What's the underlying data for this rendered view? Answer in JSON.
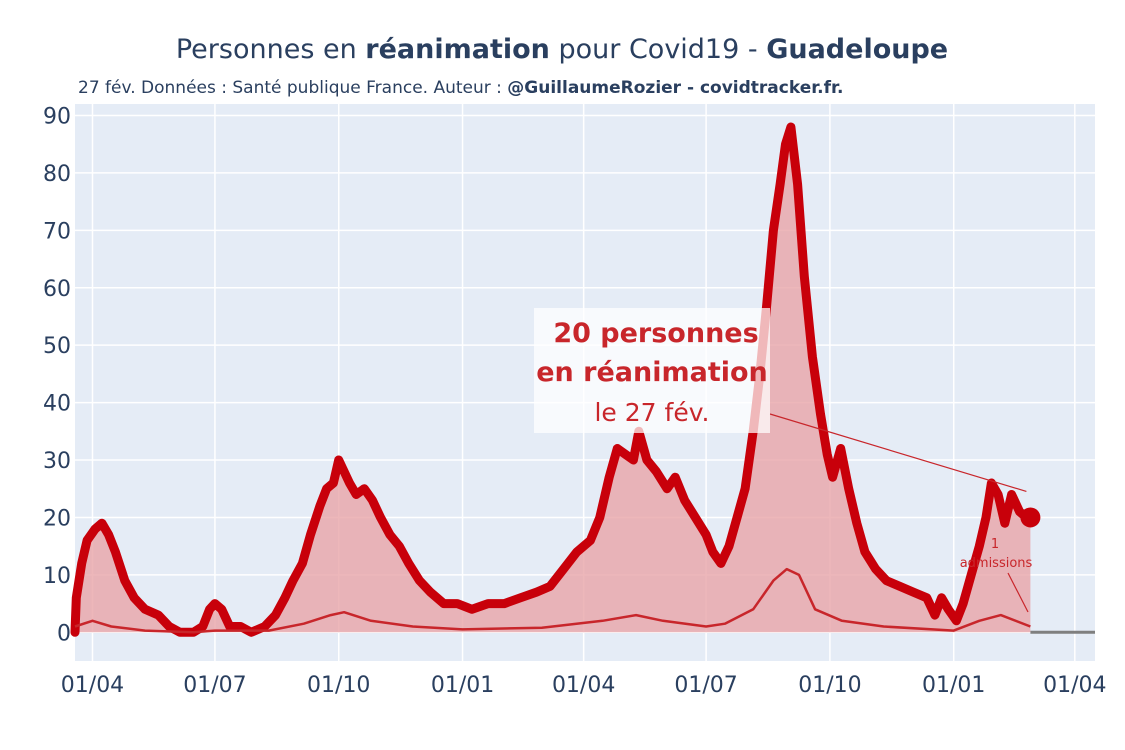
{
  "title": {
    "prefix": "Personnes en ",
    "bold1": "réanimation",
    "middle": " pour Covid19 - ",
    "bold2": "Guadeloupe"
  },
  "subtitle": {
    "prefix": "27 fév. Données : Santé publique France. Auteur : ",
    "bold": "@GuillaumeRozier - covidtracker.fr."
  },
  "colors": {
    "plot_bg": "#e5ecf6",
    "grid": "#ffffff",
    "line": "#c8000a",
    "fill": "#e8a5a9",
    "admissions": "#c8262b",
    "zero_line": "#7f7f7f",
    "text": "#2a3f5f"
  },
  "annotation": {
    "line1": "20 personnes",
    "line2": "en réanimation",
    "line3": "le 27 fév.",
    "small_number": "1",
    "small_label": "admissions"
  },
  "chart_data": {
    "type": "area",
    "x_axis": {
      "ticks": [
        "2020-04-01",
        "2020-07-01",
        "2020-10-01",
        "2021-01-01",
        "2021-04-01",
        "2021-07-01",
        "2021-10-01",
        "2022-01-01",
        "2022-04-01"
      ],
      "tick_labels": [
        "01/04",
        "01/07",
        "01/10",
        "01/01",
        "01/04",
        "01/07",
        "01/10",
        "01/01",
        "01/04"
      ],
      "range": [
        "2020-03-19",
        "2022-04-16"
      ]
    },
    "y_axis": {
      "ticks": [
        0,
        10,
        20,
        30,
        40,
        50,
        60,
        70,
        80,
        90
      ],
      "range": [
        -5,
        92
      ]
    },
    "grid": true,
    "series": [
      {
        "kind": "reanimation",
        "points": [
          [
            "2020-03-19",
            0
          ],
          [
            "2020-03-20",
            6
          ],
          [
            "2020-03-24",
            12
          ],
          [
            "2020-03-28",
            16
          ],
          [
            "2020-04-03",
            18
          ],
          [
            "2020-04-08",
            19
          ],
          [
            "2020-04-13",
            17
          ],
          [
            "2020-04-18",
            14
          ],
          [
            "2020-04-25",
            9
          ],
          [
            "2020-05-02",
            6
          ],
          [
            "2020-05-10",
            4
          ],
          [
            "2020-05-20",
            3
          ],
          [
            "2020-05-28",
            1
          ],
          [
            "2020-06-05",
            0
          ],
          [
            "2020-06-15",
            0
          ],
          [
            "2020-06-22",
            1
          ],
          [
            "2020-06-27",
            4
          ],
          [
            "2020-07-01",
            5
          ],
          [
            "2020-07-06",
            4
          ],
          [
            "2020-07-12",
            1
          ],
          [
            "2020-07-20",
            1
          ],
          [
            "2020-07-28",
            0
          ],
          [
            "2020-08-07",
            1
          ],
          [
            "2020-08-15",
            3
          ],
          [
            "2020-08-22",
            6
          ],
          [
            "2020-08-28",
            9
          ],
          [
            "2020-09-04",
            12
          ],
          [
            "2020-09-10",
            17
          ],
          [
            "2020-09-17",
            22
          ],
          [
            "2020-09-22",
            25
          ],
          [
            "2020-09-27",
            26
          ],
          [
            "2020-10-01",
            30
          ],
          [
            "2020-10-05",
            28
          ],
          [
            "2020-10-09",
            26
          ],
          [
            "2020-10-14",
            24
          ],
          [
            "2020-10-20",
            25
          ],
          [
            "2020-10-26",
            23
          ],
          [
            "2020-11-01",
            20
          ],
          [
            "2020-11-08",
            17
          ],
          [
            "2020-11-15",
            15
          ],
          [
            "2020-11-22",
            12
          ],
          [
            "2020-11-30",
            9
          ],
          [
            "2020-12-08",
            7
          ],
          [
            "2020-12-18",
            5
          ],
          [
            "2020-12-28",
            5
          ],
          [
            "2021-01-08",
            4
          ],
          [
            "2021-01-20",
            5
          ],
          [
            "2021-02-01",
            5
          ],
          [
            "2021-02-13",
            6
          ],
          [
            "2021-02-25",
            7
          ],
          [
            "2021-03-07",
            8
          ],
          [
            "2021-03-17",
            11
          ],
          [
            "2021-03-27",
            14
          ],
          [
            "2021-04-06",
            16
          ],
          [
            "2021-04-13",
            20
          ],
          [
            "2021-04-20",
            27
          ],
          [
            "2021-04-26",
            32
          ],
          [
            "2021-05-02",
            31
          ],
          [
            "2021-05-08",
            30
          ],
          [
            "2021-05-12",
            35
          ],
          [
            "2021-05-18",
            30
          ],
          [
            "2021-05-25",
            28
          ],
          [
            "2021-06-02",
            25
          ],
          [
            "2021-06-08",
            27
          ],
          [
            "2021-06-15",
            23
          ],
          [
            "2021-06-23",
            20
          ],
          [
            "2021-07-01",
            17
          ],
          [
            "2021-07-06",
            14
          ],
          [
            "2021-07-12",
            12
          ],
          [
            "2021-07-18",
            15
          ],
          [
            "2021-07-24",
            20
          ],
          [
            "2021-07-30",
            25
          ],
          [
            "2021-08-05",
            35
          ],
          [
            "2021-08-10",
            45
          ],
          [
            "2021-08-15",
            57
          ],
          [
            "2021-08-20",
            70
          ],
          [
            "2021-08-25",
            78
          ],
          [
            "2021-08-29",
            85
          ],
          [
            "2021-09-02",
            88
          ],
          [
            "2021-09-07",
            78
          ],
          [
            "2021-09-12",
            62
          ],
          [
            "2021-09-18",
            48
          ],
          [
            "2021-09-24",
            38
          ],
          [
            "2021-09-29",
            31
          ],
          [
            "2021-10-03",
            27
          ],
          [
            "2021-10-09",
            32
          ],
          [
            "2021-10-15",
            25
          ],
          [
            "2021-10-21",
            19
          ],
          [
            "2021-10-27",
            14
          ],
          [
            "2021-11-04",
            11
          ],
          [
            "2021-11-12",
            9
          ],
          [
            "2021-11-22",
            8
          ],
          [
            "2021-12-02",
            7
          ],
          [
            "2021-12-12",
            6
          ],
          [
            "2021-12-18",
            3
          ],
          [
            "2021-12-23",
            6
          ],
          [
            "2021-12-28",
            4
          ],
          [
            "2022-01-03",
            2
          ],
          [
            "2022-01-08",
            5
          ],
          [
            "2022-01-14",
            10
          ],
          [
            "2022-01-20",
            15
          ],
          [
            "2022-01-25",
            20
          ],
          [
            "2022-01-29",
            26
          ],
          [
            "2022-02-03",
            24
          ],
          [
            "2022-02-08",
            19
          ],
          [
            "2022-02-13",
            24
          ],
          [
            "2022-02-19",
            21
          ],
          [
            "2022-02-24",
            20
          ],
          [
            "2022-02-27",
            20
          ]
        ]
      },
      {
        "kind": "admissions",
        "points": [
          [
            "2020-03-19",
            1
          ],
          [
            "2020-04-01",
            2
          ],
          [
            "2020-04-15",
            1
          ],
          [
            "2020-05-10",
            0.3
          ],
          [
            "2020-06-15",
            0
          ],
          [
            "2020-07-01",
            0.3
          ],
          [
            "2020-08-10",
            0.3
          ],
          [
            "2020-09-05",
            1.5
          ],
          [
            "2020-09-25",
            3
          ],
          [
            "2020-10-05",
            3.5
          ],
          [
            "2020-10-25",
            2
          ],
          [
            "2020-11-25",
            1
          ],
          [
            "2021-01-01",
            0.5
          ],
          [
            "2021-03-01",
            0.8
          ],
          [
            "2021-04-15",
            2
          ],
          [
            "2021-05-10",
            3
          ],
          [
            "2021-05-30",
            2
          ],
          [
            "2021-07-01",
            1
          ],
          [
            "2021-07-15",
            1.5
          ],
          [
            "2021-08-05",
            4
          ],
          [
            "2021-08-20",
            9
          ],
          [
            "2021-08-30",
            11
          ],
          [
            "2021-09-08",
            10
          ],
          [
            "2021-09-20",
            4
          ],
          [
            "2021-10-10",
            2
          ],
          [
            "2021-11-10",
            1
          ],
          [
            "2022-01-01",
            0.3
          ],
          [
            "2022-01-20",
            2
          ],
          [
            "2022-02-05",
            3
          ],
          [
            "2022-02-27",
            1
          ]
        ]
      }
    ]
  }
}
